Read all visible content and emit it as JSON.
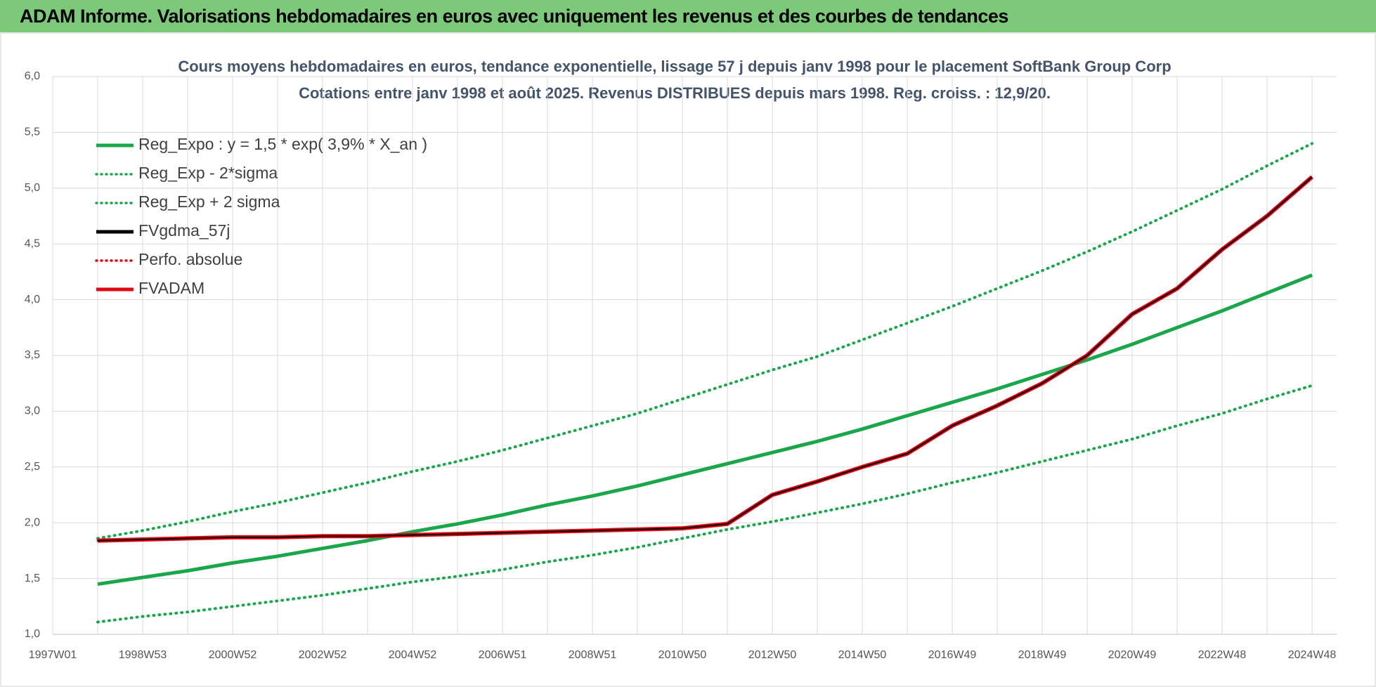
{
  "banner": {
    "title": "ADAM Informe. Valorisations hebdomadaires en euros avec uniquement les revenus et des courbes de tendances"
  },
  "chart_data": {
    "type": "line",
    "title": "Cours moyens hebdomadaires en euros, tendance exponentielle, lissage 57 j depuis janv 1998 pour le placement SoftBank Group Corp",
    "subtitle": "Cotations entre janv 1998 et août 2025.  Revenus DISTRIBUES depuis mars 1998. Reg. croiss. : 12,9/20.",
    "categories": [
      "1997W01",
      null,
      "1998W53",
      null,
      "2000W52",
      null,
      "2002W52",
      null,
      "2004W52",
      null,
      "2006W51",
      null,
      "2008W51",
      null,
      "2010W50",
      null,
      "2012W50",
      null,
      "2014W50",
      null,
      "2016W49",
      null,
      "2018W49",
      null,
      "2020W49",
      null,
      "2022W48",
      null,
      "2024W48"
    ],
    "ylim": [
      1.0,
      6.0
    ],
    "yticks": [
      {
        "value": 1.0,
        "label": "1,0"
      },
      {
        "value": 1.5,
        "label": "1,5"
      },
      {
        "value": 2.0,
        "label": "2,0"
      },
      {
        "value": 2.5,
        "label": "2,5"
      },
      {
        "value": 3.0,
        "label": "3,0"
      },
      {
        "value": 3.5,
        "label": "3,5"
      },
      {
        "value": 4.0,
        "label": "4,0"
      },
      {
        "value": 4.5,
        "label": "4,5"
      },
      {
        "value": 5.0,
        "label": "5,0"
      },
      {
        "value": 5.5,
        "label": "5,5"
      },
      {
        "value": 6.0,
        "label": "6,0"
      }
    ],
    "grid": true,
    "legend": "top-left",
    "series": [
      {
        "name": "Reg_Expo : y = 1,5 * exp( 3,9% *  X_an )",
        "color": "#1aa64a",
        "style": "solid",
        "width": 5,
        "values": [
          null,
          1.45,
          1.51,
          1.57,
          1.64,
          1.7,
          1.77,
          1.84,
          1.92,
          1.99,
          2.07,
          2.16,
          2.24,
          2.33,
          2.43,
          2.53,
          2.63,
          2.73,
          2.84,
          2.96,
          3.08,
          3.2,
          3.33,
          3.46,
          3.6,
          3.75,
          3.9,
          4.06,
          4.22
        ]
      },
      {
        "name": "Reg_Exp - 2*sigma",
        "color": "#1aa64a",
        "style": "dotted",
        "width": 4,
        "values": [
          null,
          1.11,
          1.16,
          1.2,
          1.25,
          1.3,
          1.35,
          1.41,
          1.47,
          1.52,
          1.58,
          1.65,
          1.71,
          1.78,
          1.86,
          1.94,
          2.01,
          2.09,
          2.17,
          2.26,
          2.36,
          2.45,
          2.55,
          2.65,
          2.75,
          2.87,
          2.98,
          3.11,
          3.23
        ]
      },
      {
        "name": "Reg_Exp + 2 sigma",
        "color": "#1aa64a",
        "style": "dotted",
        "width": 4,
        "values": [
          null,
          1.86,
          1.93,
          2.01,
          2.1,
          2.18,
          2.27,
          2.36,
          2.46,
          2.55,
          2.65,
          2.76,
          2.87,
          2.98,
          3.11,
          3.24,
          3.37,
          3.49,
          3.64,
          3.79,
          3.94,
          4.1,
          4.26,
          4.43,
          4.61,
          4.8,
          4.99,
          5.2,
          5.4
        ]
      },
      {
        "name": "FVADAM",
        "color": "#e30613",
        "style": "solid",
        "width": 6,
        "values": [
          null,
          1.84,
          1.85,
          1.86,
          1.87,
          1.87,
          1.88,
          1.88,
          1.89,
          1.9,
          1.91,
          1.92,
          1.93,
          1.94,
          1.95,
          1.99,
          2.25,
          2.37,
          2.5,
          2.62,
          2.87,
          3.05,
          3.25,
          3.5,
          3.87,
          4.1,
          4.45,
          4.75,
          5.1
        ]
      },
      {
        "name": "Perfo. absolue",
        "color": "#e30613",
        "style": "dotted",
        "width": 3,
        "values": [
          null,
          1.84,
          1.85,
          1.86,
          1.87,
          1.87,
          1.88,
          1.88,
          1.89,
          1.9,
          1.91,
          1.92,
          1.93,
          1.94,
          1.95,
          1.99,
          2.25,
          2.37,
          2.5,
          2.62,
          2.87,
          3.05,
          3.25,
          3.5,
          3.87,
          4.1,
          4.45,
          4.75,
          5.1
        ]
      },
      {
        "name": "FVgdma_57j",
        "color": "#000000",
        "style": "solid",
        "width": 2,
        "values": [
          null,
          1.84,
          1.85,
          1.86,
          1.87,
          1.87,
          1.88,
          1.88,
          1.89,
          1.9,
          1.91,
          1.92,
          1.93,
          1.94,
          1.95,
          1.99,
          2.25,
          2.37,
          2.5,
          2.62,
          2.87,
          3.05,
          3.25,
          3.5,
          3.87,
          4.1,
          4.45,
          4.75,
          5.1
        ]
      }
    ],
    "legend_order": [
      0,
      1,
      2,
      5,
      4,
      3
    ]
  }
}
